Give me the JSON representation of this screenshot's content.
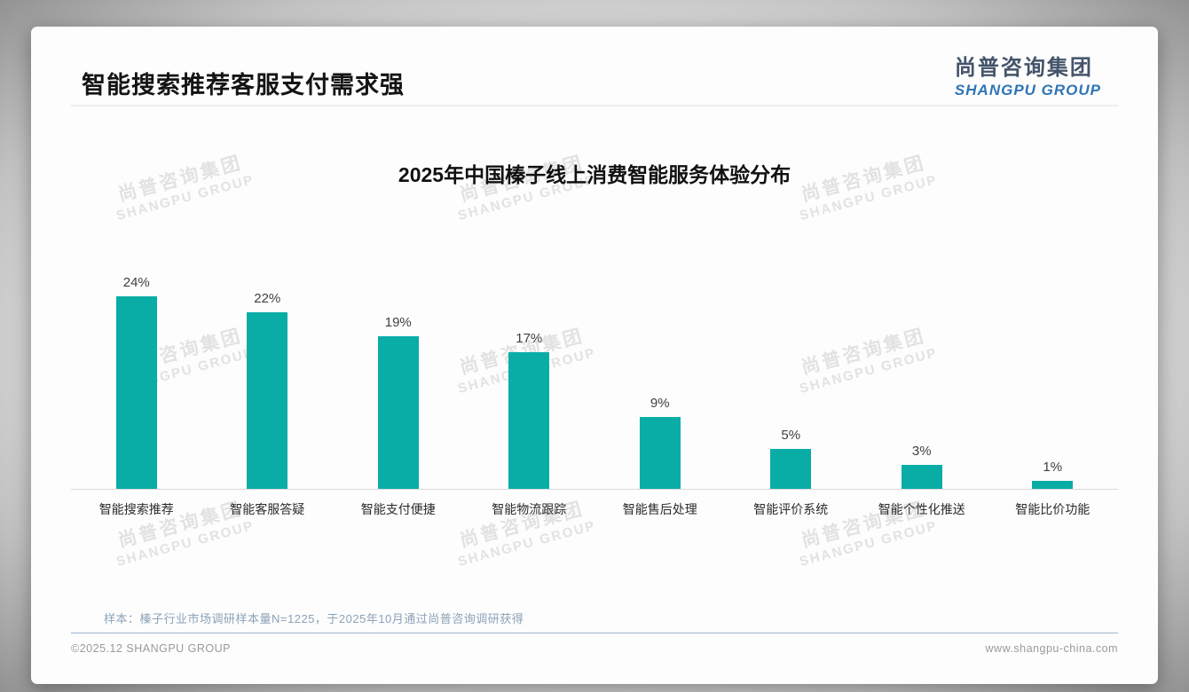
{
  "header": {
    "title": "智能搜索推荐客服支付需求强"
  },
  "logo": {
    "cn": "尚普咨询集团",
    "en": "SHANGPU GROUP"
  },
  "watermark": {
    "cn": "尚普咨询集团",
    "en": "SHANGPU GROUP"
  },
  "chart_data": {
    "type": "bar",
    "title": "2025年中国榛子线上消费智能服务体验分布",
    "categories": [
      "智能搜索推荐",
      "智能客服答疑",
      "智能支付便捷",
      "智能物流跟踪",
      "智能售后处理",
      "智能评价系统",
      "智能个性化推送",
      "智能比价功能"
    ],
    "values": [
      24,
      22,
      19,
      17,
      9,
      5,
      3,
      1
    ],
    "value_labels": [
      "24%",
      "22%",
      "19%",
      "17%",
      "9%",
      "5%",
      "3%",
      "1%"
    ],
    "xlabel": "",
    "ylabel": "",
    "ylim": [
      0,
      26
    ],
    "grid": false,
    "legend": "none",
    "bar_color": "#0aada6"
  },
  "footnote": "样本：榛子行业市场调研样本量N=1225，于2025年10月通过尚普咨询调研获得",
  "footer": {
    "left": "©2025.12 SHANGPU GROUP",
    "right": "www.shangpu-china.com"
  },
  "colors": {
    "bar": "#0aada6",
    "title_text": "#141414",
    "logo_cn": "#44546a",
    "logo_en": "#2e75b6",
    "footnote_text": "#8ca2b8",
    "axis_line": "#d9d9d9",
    "watermark": "#e2e2e2"
  }
}
